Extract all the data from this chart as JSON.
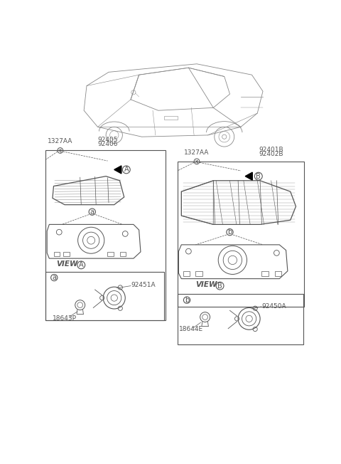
{
  "bg_color": "#ffffff",
  "line_color": "#555555",
  "lc_thin": "#777777",
  "labels_left": {
    "screw": "1327AA",
    "main_part1": "92405",
    "main_part2": "92406",
    "view_label": "A",
    "sub_label": "a",
    "part_a1": "92451A",
    "part_a2": "18643P"
  },
  "labels_right": {
    "screw": "1327AA",
    "main_part1": "92401B",
    "main_part2": "92402B",
    "view_label": "B",
    "sub_label": "b",
    "part_b1": "92450A",
    "part_b2": "18644E"
  }
}
